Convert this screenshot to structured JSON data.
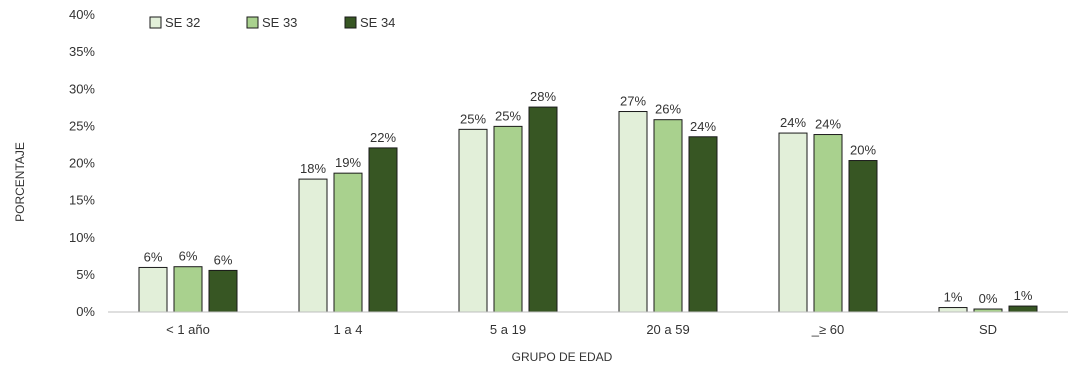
{
  "chart_data": {
    "type": "bar",
    "title": "",
    "xlabel": "GRUPO DE EDAD",
    "ylabel": "PORCENTAJE",
    "ylim": [
      0,
      40
    ],
    "yticks": [
      "0%",
      "5%",
      "10%",
      "15%",
      "20%",
      "25%",
      "30%",
      "35%",
      "40%"
    ],
    "grid": false,
    "legend_position": "top-left",
    "categories": [
      "< 1 año",
      "1 a 4",
      "5 a 19",
      "20 a 59",
      "_≥ 60",
      "SD"
    ],
    "series": [
      {
        "name": "SE 32",
        "color": "#e2efd9",
        "values": [
          6.0,
          17.9,
          24.6,
          27.0,
          24.1,
          0.6
        ],
        "labels": [
          "6%",
          "18%",
          "25%",
          "27%",
          "24%",
          "1%"
        ]
      },
      {
        "name": "SE 33",
        "color": "#a9d18e",
        "values": [
          6.1,
          18.7,
          25.0,
          25.9,
          23.9,
          0.4
        ],
        "labels": [
          "6%",
          "19%",
          "25%",
          "26%",
          "24%",
          "0%"
        ]
      },
      {
        "name": "SE 34",
        "color": "#375623",
        "values": [
          5.6,
          22.1,
          27.6,
          23.6,
          20.4,
          0.8
        ],
        "labels": [
          "6%",
          "22%",
          "28%",
          "24%",
          "20%",
          "1%"
        ]
      }
    ]
  }
}
